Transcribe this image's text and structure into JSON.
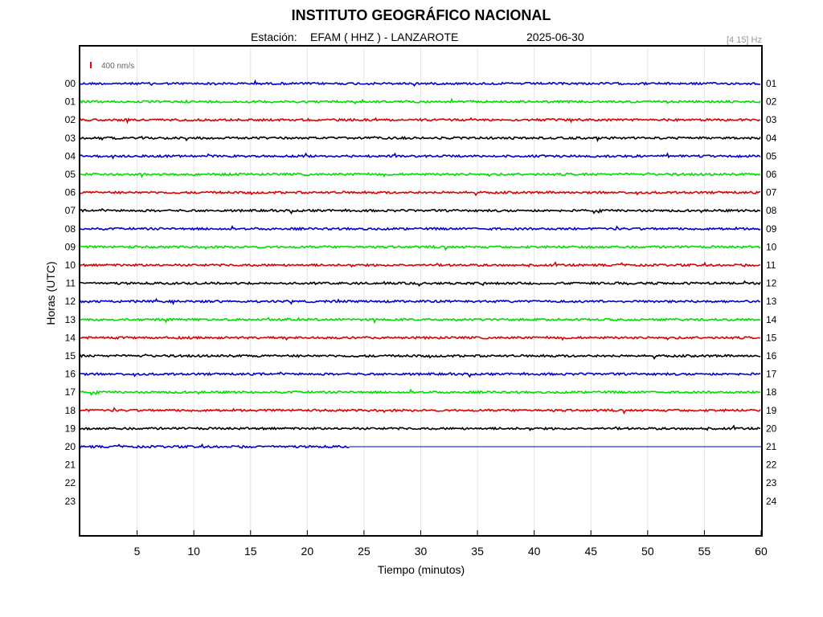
{
  "chart_data": {
    "type": "line",
    "title": "INSTITUTO GEOGRÁFICO NACIONAL",
    "station_label": "Estación:",
    "station": "EFAM ( HHZ ) - LANZAROTE",
    "date": "2025-06-30",
    "filter": "[4 15] Hz",
    "scale_label": "400 nm/s",
    "scale_color": "#ff0000",
    "xlabel": "Tiempo (minutos)",
    "ylabel": "Horas (UTC)",
    "xlim": [
      0,
      60
    ],
    "x_ticks": [
      "5",
      "10",
      "15",
      "20",
      "25",
      "30",
      "35",
      "40",
      "45",
      "50",
      "55",
      "60"
    ],
    "left_hour_labels": [
      "00",
      "01",
      "02",
      "03",
      "04",
      "05",
      "06",
      "07",
      "08",
      "09",
      "10",
      "11",
      "12",
      "13",
      "14",
      "15",
      "16",
      "17",
      "18",
      "19",
      "20",
      "21",
      "22",
      "23"
    ],
    "right_hour_labels": [
      "01",
      "02",
      "03",
      "04",
      "05",
      "06",
      "07",
      "08",
      "09",
      "10",
      "11",
      "12",
      "13",
      "14",
      "15",
      "16",
      "17",
      "18",
      "19",
      "20",
      "21",
      "22",
      "23",
      "24"
    ],
    "trace_colors": [
      "#0000cc",
      "#00dd00",
      "#dd0000",
      "#000000"
    ],
    "grid": true,
    "series": [
      {
        "hour": "00",
        "start_min": 0,
        "end_min": 60
      },
      {
        "hour": "01",
        "start_min": 0,
        "end_min": 60
      },
      {
        "hour": "02",
        "start_min": 0,
        "end_min": 60
      },
      {
        "hour": "03",
        "start_min": 0,
        "end_min": 60
      },
      {
        "hour": "04",
        "start_min": 0,
        "end_min": 60
      },
      {
        "hour": "05",
        "start_min": 0,
        "end_min": 60
      },
      {
        "hour": "06",
        "start_min": 0,
        "end_min": 60
      },
      {
        "hour": "07",
        "start_min": 0,
        "end_min": 60
      },
      {
        "hour": "08",
        "start_min": 0,
        "end_min": 60
      },
      {
        "hour": "09",
        "start_min": 0,
        "end_min": 60
      },
      {
        "hour": "10",
        "start_min": 0,
        "end_min": 60
      },
      {
        "hour": "11",
        "start_min": 0,
        "end_min": 60
      },
      {
        "hour": "12",
        "start_min": 0,
        "end_min": 60
      },
      {
        "hour": "13",
        "start_min": 0,
        "end_min": 60
      },
      {
        "hour": "14",
        "start_min": 0,
        "end_min": 60
      },
      {
        "hour": "15",
        "start_min": 0,
        "end_min": 60
      },
      {
        "hour": "16",
        "start_min": 0,
        "end_min": 60
      },
      {
        "hour": "17",
        "start_min": 0,
        "end_min": 60
      },
      {
        "hour": "18",
        "start_min": 0,
        "end_min": 60
      },
      {
        "hour": "19",
        "start_min": 0,
        "end_min": 60
      },
      {
        "hour": "20",
        "start_min": 0,
        "end_min": 23.7
      }
    ]
  }
}
